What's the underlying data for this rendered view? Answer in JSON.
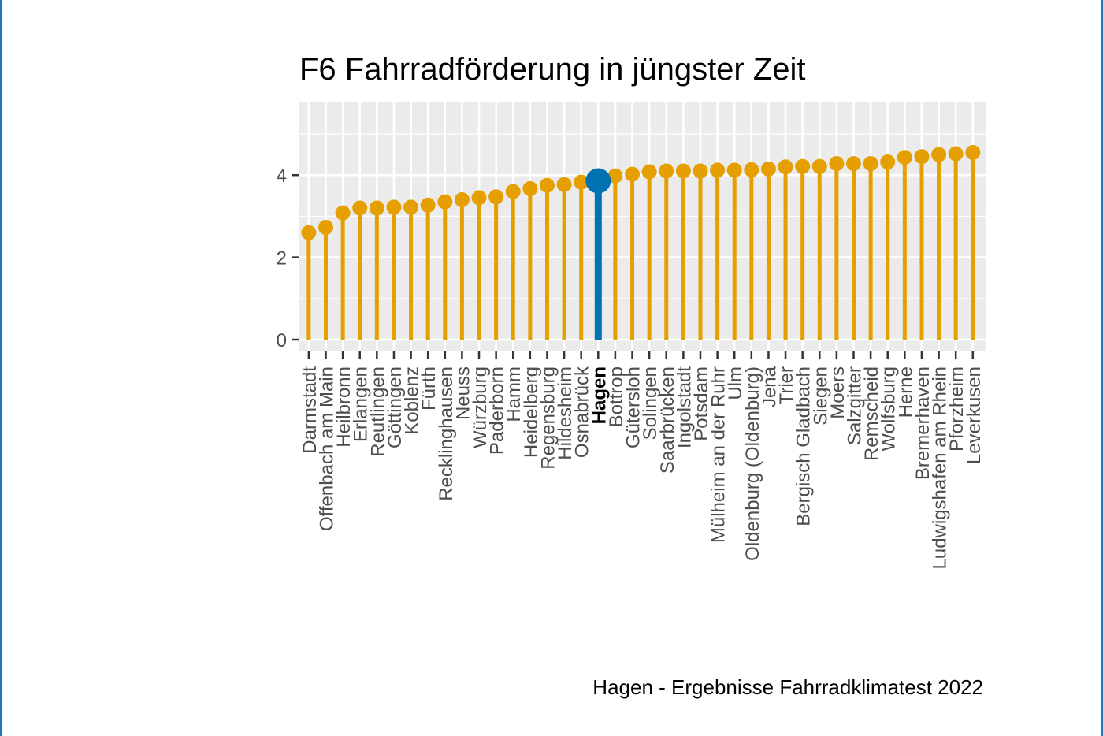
{
  "chart_data": {
    "type": "lollipop",
    "title": "F6 Fahrradförderung in jüngster Zeit",
    "caption": "Hagen - Ergebnisse Fahrradklimatest 2022",
    "xlabel": "",
    "ylabel": "",
    "ylim": [
      0,
      5.8
    ],
    "yticks": [
      0,
      2,
      4
    ],
    "grid": true,
    "highlight": "Hagen",
    "colors": {
      "default": "#E69F00",
      "highlight": "#0072B2",
      "panel": "#EBEBEB",
      "grid": "#FFFFFF"
    },
    "categories": [
      "Darmstadt",
      "Offenbach am Main",
      "Heilbronn",
      "Erlangen",
      "Reutlingen",
      "Göttingen",
      "Koblenz",
      "Fürth",
      "Recklinghausen",
      "Neuss",
      "Würzburg",
      "Paderborn",
      "Hamm",
      "Heidelberg",
      "Regensburg",
      "Hildesheim",
      "Osnabrück",
      "Hagen",
      "Bottrop",
      "Gütersloh",
      "Solingen",
      "Saarbrücken",
      "Ingolstadt",
      "Potsdam",
      "Mülheim an der Ruhr",
      "Ulm",
      "Oldenburg (Oldenburg)",
      "Jena",
      "Trier",
      "Bergisch Gladbach",
      "Siegen",
      "Moers",
      "Salzgitter",
      "Remscheid",
      "Wolfsburg",
      "Herne",
      "Bremerhaven",
      "Ludwigshafen am Rhein",
      "Pforzheim",
      "Leverkusen"
    ],
    "values": [
      2.6,
      2.73,
      3.08,
      3.2,
      3.2,
      3.22,
      3.22,
      3.27,
      3.35,
      3.4,
      3.45,
      3.47,
      3.6,
      3.67,
      3.75,
      3.77,
      3.83,
      3.86,
      3.98,
      4.02,
      4.08,
      4.1,
      4.1,
      4.1,
      4.12,
      4.12,
      4.13,
      4.15,
      4.2,
      4.21,
      4.21,
      4.28,
      4.28,
      4.28,
      4.32,
      4.43,
      4.45,
      4.5,
      4.52,
      4.55
    ]
  }
}
